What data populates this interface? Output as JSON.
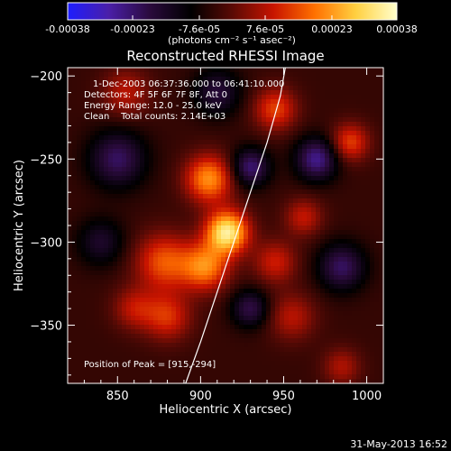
{
  "chart_data": {
    "type": "heatmap",
    "title": "Reconstructed RHESSI Image",
    "xlabel": "Heliocentric X (arcsec)",
    "ylabel": "Heliocentric Y (arcsec)",
    "xlim": [
      820,
      1010
    ],
    "ylim": [
      -385,
      -195
    ],
    "x_ticks": [
      850,
      900,
      950,
      1000
    ],
    "y_ticks": [
      -200,
      -250,
      -300,
      -350
    ],
    "colorbar": {
      "unit_label": "(photons cm⁻² s⁻¹ asec⁻²)",
      "min": -0.00038,
      "max": 0.00038,
      "tick_values": [
        -0.00038,
        -0.00023,
        -7.6e-05,
        7.6e-05,
        0.00023,
        0.00038
      ],
      "tick_labels": [
        "-0.00038",
        "-0.00023",
        "-7.6e-05",
        "7.6e-05",
        "0.00023",
        "0.00038"
      ],
      "colors": [
        "#1e1eff",
        "#4a1fa8",
        "#2a0a3c",
        "#000000",
        "#5a0a05",
        "#c81400",
        "#ff7000",
        "#ffd040",
        "#ffffcc"
      ]
    },
    "annotations": [
      "1-Dec-2003 06:37:36.000 to 06:41:10.000",
      "Detectors: 4F 5F 6F 7F 8F, Att 0",
      "Energy Range: 12.0 - 25.0 keV",
      "Clean    Total counts: 2.14E+03"
    ],
    "peak_label": "Position of Peak = [915,-294]",
    "peak": {
      "x": 915,
      "y": -294
    },
    "limb_curve": [
      [
        891,
        -385
      ],
      [
        900,
        -360
      ],
      [
        910,
        -330
      ],
      [
        920,
        -300
      ],
      [
        930,
        -270
      ],
      [
        940,
        -240
      ],
      [
        948,
        -212
      ],
      [
        951,
        -195
      ]
    ],
    "sources": [
      {
        "x": 916,
        "y": -294,
        "sigma": 9,
        "amp": 0.00038
      },
      {
        "x": 905,
        "y": -262,
        "sigma": 10,
        "amp": 0.00026
      },
      {
        "x": 903,
        "y": -315,
        "sigma": 10,
        "amp": 0.00024
      },
      {
        "x": 878,
        "y": -312,
        "sigma": 12,
        "amp": 0.0002
      },
      {
        "x": 880,
        "y": -345,
        "sigma": 10,
        "amp": 0.00016
      },
      {
        "x": 860,
        "y": -340,
        "sigma": 9,
        "amp": 0.00012
      },
      {
        "x": 855,
        "y": -210,
        "sigma": 10,
        "amp": 0.00012
      },
      {
        "x": 945,
        "y": -220,
        "sigma": 9,
        "amp": 0.00018
      },
      {
        "x": 962,
        "y": -285,
        "sigma": 8,
        "amp": 0.00013
      },
      {
        "x": 990,
        "y": -240,
        "sigma": 8,
        "amp": 0.00018
      },
      {
        "x": 945,
        "y": -312,
        "sigma": 9,
        "amp": 0.00014
      },
      {
        "x": 955,
        "y": -345,
        "sigma": 10,
        "amp": 0.00012
      },
      {
        "x": 985,
        "y": -375,
        "sigma": 8,
        "amp": 0.00011
      },
      {
        "x": 930,
        "y": -255,
        "sigma": 8,
        "amp": -0.0002
      },
      {
        "x": 970,
        "y": -250,
        "sigma": 9,
        "amp": -0.00022
      },
      {
        "x": 850,
        "y": -250,
        "sigma": 12,
        "amp": -0.00018
      },
      {
        "x": 930,
        "y": -340,
        "sigma": 8,
        "amp": -0.00016
      },
      {
        "x": 985,
        "y": -315,
        "sigma": 10,
        "amp": -0.00018
      },
      {
        "x": 840,
        "y": -300,
        "sigma": 10,
        "amp": -0.00012
      },
      {
        "x": 910,
        "y": -210,
        "sigma": 10,
        "amp": -0.00014
      }
    ]
  },
  "footer_date": "31-May-2013 16:52"
}
